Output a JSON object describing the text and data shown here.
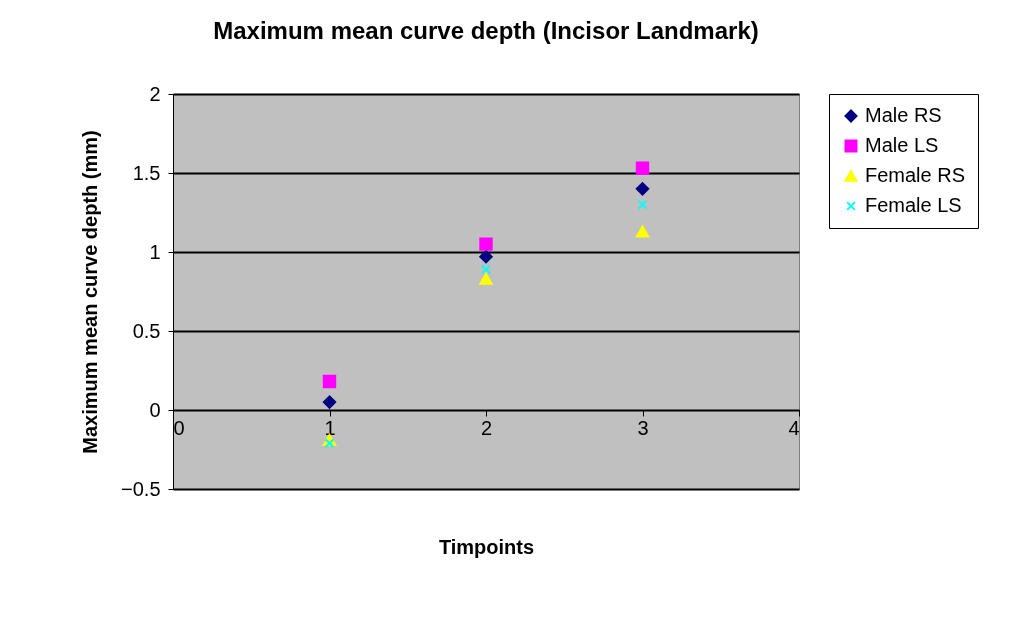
{
  "chart_data": {
    "type": "scatter",
    "title": "Maximum mean curve depth (Incisor Landmark)",
    "xlabel": "Timpoints",
    "ylabel": "Maximum mean curve depth (mm)",
    "x": [
      1,
      2,
      3
    ],
    "series": [
      {
        "name": "Male RS",
        "color": "#000080",
        "marker": "diamond",
        "values": [
          0.05,
          0.97,
          1.4
        ]
      },
      {
        "name": "Male LS",
        "color": "#ff00ff",
        "marker": "square",
        "values": [
          0.18,
          1.05,
          1.53
        ]
      },
      {
        "name": "Female RS",
        "color": "#ffff00",
        "marker": "triangle",
        "values": [
          -0.19,
          0.83,
          1.13
        ]
      },
      {
        "name": "Female LS",
        "color": "#00ffff",
        "marker": "cross",
        "values": [
          -0.21,
          0.89,
          1.3
        ]
      }
    ],
    "xlim": [
      0,
      4
    ],
    "xticks": [
      0,
      1,
      2,
      3,
      4
    ],
    "ylim": [
      -0.5,
      2
    ],
    "yticks": [
      -0.5,
      0,
      0.5,
      1,
      1.5,
      2
    ],
    "grid": "y",
    "legend": "right"
  }
}
